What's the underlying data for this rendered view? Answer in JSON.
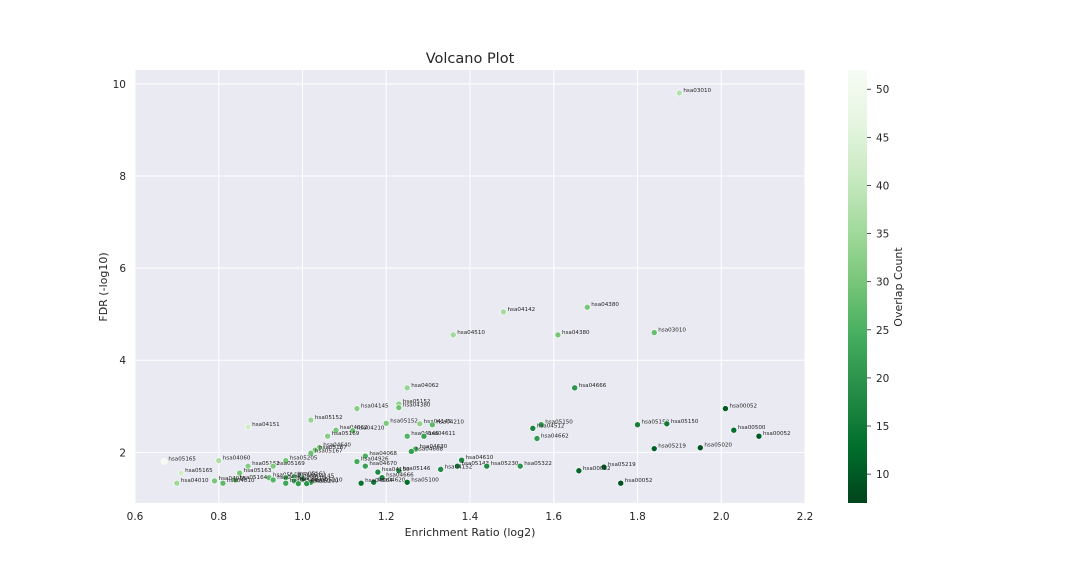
{
  "chart_data": {
    "type": "scatter",
    "title": "Volcano Plot",
    "xlabel": "Enrichment Ratio (log2)",
    "ylabel": "FDR (-log10)",
    "xlim": [
      0.6,
      2.2
    ],
    "ylim": [
      0.9,
      10.3
    ],
    "xticks": [
      "0.6",
      "0.8",
      "1.0",
      "1.2",
      "1.4",
      "1.6",
      "1.8",
      "2.0",
      "2.2"
    ],
    "yticks": [
      "2",
      "4",
      "6",
      "8",
      "10"
    ],
    "grid": true,
    "colorbar": {
      "label": "Overlap Count",
      "range": [
        7,
        52
      ],
      "ticks": [
        "10",
        "15",
        "20",
        "25",
        "30",
        "35",
        "40",
        "45",
        "50"
      ],
      "colormap": "Greens_r"
    },
    "colors": {
      "plot_bg": "#eaeaf2",
      "grid": "#ffffff",
      "dark_green": "#00441b",
      "light": "#f7fcf5"
    },
    "points": [
      {
        "x": 1.9,
        "y": 9.8,
        "c": 38,
        "label": "hsa03010"
      },
      {
        "x": 1.48,
        "y": 5.05,
        "c": 36,
        "label": "hsa04142"
      },
      {
        "x": 1.68,
        "y": 5.15,
        "c": 30,
        "label": "hsa04380"
      },
      {
        "x": 1.36,
        "y": 4.55,
        "c": 35,
        "label": "hsa04510"
      },
      {
        "x": 1.61,
        "y": 4.55,
        "c": 30,
        "label": "hsa04380"
      },
      {
        "x": 1.84,
        "y": 4.6,
        "c": 28,
        "label": "hsa03010"
      },
      {
        "x": 1.25,
        "y": 3.4,
        "c": 34,
        "label": "hsa04062"
      },
      {
        "x": 1.65,
        "y": 3.4,
        "c": 20,
        "label": "hsa04666"
      },
      {
        "x": 1.23,
        "y": 3.05,
        "c": 33,
        "label": "hsa05152"
      },
      {
        "x": 1.23,
        "y": 2.97,
        "c": 29,
        "label": "hsa04380"
      },
      {
        "x": 1.13,
        "y": 2.95,
        "c": 32,
        "label": "hsa04145"
      },
      {
        "x": 2.01,
        "y": 2.95,
        "c": 10,
        "label": "hsa00052"
      },
      {
        "x": 1.02,
        "y": 2.7,
        "c": 34,
        "label": "hsa05152"
      },
      {
        "x": 1.2,
        "y": 2.63,
        "c": 31,
        "label": "hsa05152"
      },
      {
        "x": 1.28,
        "y": 2.62,
        "c": 33,
        "label": "hsa04145"
      },
      {
        "x": 1.31,
        "y": 2.6,
        "c": 27,
        "label": "hsa04210"
      },
      {
        "x": 1.57,
        "y": 2.6,
        "c": 20,
        "label": "hsa05150"
      },
      {
        "x": 1.55,
        "y": 2.52,
        "c": 17,
        "label": "hsa04512"
      },
      {
        "x": 1.8,
        "y": 2.6,
        "c": 16,
        "label": "hsa05150"
      },
      {
        "x": 1.87,
        "y": 2.62,
        "c": 15,
        "label": "hsa05150"
      },
      {
        "x": 2.03,
        "y": 2.48,
        "c": 13,
        "label": "hsa00500"
      },
      {
        "x": 2.09,
        "y": 2.35,
        "c": 10,
        "label": "hsa00052"
      },
      {
        "x": 0.87,
        "y": 2.55,
        "c": 42,
        "label": "hsa04151"
      },
      {
        "x": 1.08,
        "y": 2.48,
        "c": 30,
        "label": "hsa04062"
      },
      {
        "x": 1.12,
        "y": 2.47,
        "c": 29,
        "label": "hsa04210"
      },
      {
        "x": 1.06,
        "y": 2.35,
        "c": 32,
        "label": "hsa05169"
      },
      {
        "x": 1.25,
        "y": 2.35,
        "c": 26,
        "label": "hsa04145"
      },
      {
        "x": 1.29,
        "y": 2.35,
        "c": 22,
        "label": "hsa04611"
      },
      {
        "x": 1.56,
        "y": 2.3,
        "c": 21,
        "label": "hsa04662"
      },
      {
        "x": 1.04,
        "y": 2.1,
        "c": 30,
        "label": "hsa04640"
      },
      {
        "x": 1.03,
        "y": 2.05,
        "c": 31,
        "label": "hsa05167"
      },
      {
        "x": 1.02,
        "y": 1.98,
        "c": 29,
        "label": "hsa05167"
      },
      {
        "x": 1.27,
        "y": 2.07,
        "c": 24,
        "label": "hsa04630"
      },
      {
        "x": 1.26,
        "y": 2.02,
        "c": 22,
        "label": "hsa04668"
      },
      {
        "x": 1.84,
        "y": 2.08,
        "c": 11,
        "label": "hsa05219"
      },
      {
        "x": 1.95,
        "y": 2.1,
        "c": 9,
        "label": "hsa05020"
      },
      {
        "x": 1.15,
        "y": 1.92,
        "c": 25,
        "label": "hsa04068"
      },
      {
        "x": 1.13,
        "y": 1.8,
        "c": 24,
        "label": "hsa04926"
      },
      {
        "x": 1.15,
        "y": 1.7,
        "c": 22,
        "label": "hsa04670"
      },
      {
        "x": 1.38,
        "y": 1.83,
        "c": 17,
        "label": "hsa04610"
      },
      {
        "x": 1.37,
        "y": 1.7,
        "c": 16,
        "label": "hsa05143"
      },
      {
        "x": 1.44,
        "y": 1.7,
        "c": 18,
        "label": "hsa05230"
      },
      {
        "x": 1.52,
        "y": 1.7,
        "c": 20,
        "label": "hsa05322"
      },
      {
        "x": 1.72,
        "y": 1.68,
        "c": 10,
        "label": "hsa05219"
      },
      {
        "x": 1.66,
        "y": 1.6,
        "c": 12,
        "label": "hsa00052"
      },
      {
        "x": 1.33,
        "y": 1.63,
        "c": 18,
        "label": "hsa04152"
      },
      {
        "x": 1.23,
        "y": 1.6,
        "c": 19,
        "label": "hsa05146"
      },
      {
        "x": 1.18,
        "y": 1.57,
        "c": 18,
        "label": "hsa04150"
      },
      {
        "x": 1.19,
        "y": 1.45,
        "c": 17,
        "label": "hsa04666"
      },
      {
        "x": 1.17,
        "y": 1.35,
        "c": 15,
        "label": "hsa04620"
      },
      {
        "x": 1.14,
        "y": 1.33,
        "c": 14,
        "label": "hsa04664"
      },
      {
        "x": 1.25,
        "y": 1.35,
        "c": 13,
        "label": "hsa05100"
      },
      {
        "x": 1.76,
        "y": 1.33,
        "c": 9,
        "label": "hsa00052"
      },
      {
        "x": 0.67,
        "y": 1.8,
        "c": 51,
        "label": "hsa05165"
      },
      {
        "x": 0.8,
        "y": 1.82,
        "c": 37,
        "label": "hsa04060"
      },
      {
        "x": 0.87,
        "y": 1.7,
        "c": 32,
        "label": "hsa05162"
      },
      {
        "x": 0.96,
        "y": 1.82,
        "c": 30,
        "label": "hsa05205"
      },
      {
        "x": 0.93,
        "y": 1.7,
        "c": 31,
        "label": "hsa05169"
      },
      {
        "x": 0.71,
        "y": 1.55,
        "c": 42,
        "label": "hsa05165"
      },
      {
        "x": 0.85,
        "y": 1.55,
        "c": 30,
        "label": "hsa05163"
      },
      {
        "x": 0.92,
        "y": 1.45,
        "c": 28,
        "label": "hsa05162"
      },
      {
        "x": 0.96,
        "y": 1.45,
        "c": 25,
        "label": "hsa05165"
      },
      {
        "x": 0.98,
        "y": 1.47,
        "c": 24,
        "label": "hsa05161"
      },
      {
        "x": 1.0,
        "y": 1.43,
        "c": 22,
        "label": "hsa04145"
      },
      {
        "x": 0.84,
        "y": 1.4,
        "c": 28,
        "label": "hsa05164"
      },
      {
        "x": 0.93,
        "y": 1.4,
        "c": 26,
        "label": "hsa04062"
      },
      {
        "x": 0.98,
        "y": 1.38,
        "c": 24,
        "label": "hsa04210"
      },
      {
        "x": 1.02,
        "y": 1.35,
        "c": 22,
        "label": "hsa05210"
      },
      {
        "x": 0.7,
        "y": 1.33,
        "c": 35,
        "label": "hsa04010"
      },
      {
        "x": 0.79,
        "y": 1.38,
        "c": 30,
        "label": "hsa04015"
      },
      {
        "x": 0.81,
        "y": 1.33,
        "c": 27,
        "label": "hsa04810"
      },
      {
        "x": 0.96,
        "y": 1.33,
        "c": 23,
        "label": "hsa04144"
      },
      {
        "x": 0.99,
        "y": 1.32,
        "c": 21,
        "label": "hsa04510"
      },
      {
        "x": 1.01,
        "y": 1.32,
        "c": 20,
        "label": "hsa05200"
      }
    ]
  }
}
